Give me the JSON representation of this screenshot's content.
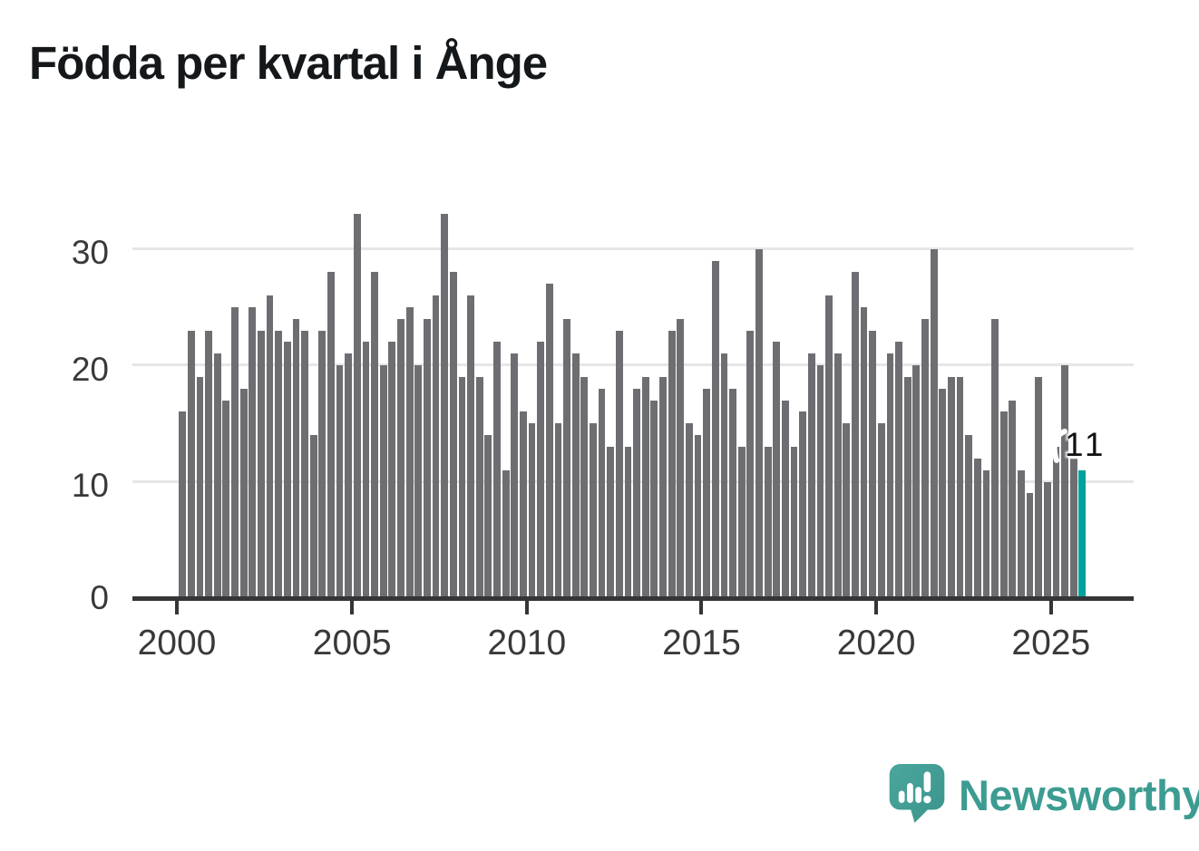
{
  "title": "Födda per kvartal i Ånge",
  "chart_data": {
    "type": "bar",
    "title": "Födda per kvartal i Ånge",
    "x_start": "2000 Q1",
    "x_end": "2025 Q4",
    "frequency": "quarterly",
    "values": [
      16,
      23,
      19,
      23,
      21,
      17,
      25,
      18,
      25,
      23,
      26,
      23,
      22,
      24,
      23,
      14,
      23,
      28,
      20,
      21,
      33,
      22,
      28,
      20,
      22,
      24,
      25,
      20,
      24,
      26,
      33,
      28,
      19,
      26,
      19,
      14,
      22,
      11,
      21,
      16,
      15,
      22,
      27,
      15,
      24,
      21,
      19,
      15,
      18,
      13,
      23,
      13,
      18,
      19,
      17,
      19,
      23,
      24,
      15,
      14,
      18,
      29,
      21,
      18,
      13,
      23,
      30,
      13,
      22,
      17,
      13,
      16,
      21,
      20,
      26,
      21,
      15,
      28,
      25,
      23,
      15,
      21,
      22,
      19,
      20,
      24,
      30,
      18,
      19,
      19,
      14,
      12,
      11,
      24,
      16,
      17,
      11,
      9,
      19,
      10,
      13,
      20,
      12,
      11
    ],
    "highlight_last": {
      "value": 11,
      "label": "11",
      "color": "#00a29b"
    },
    "bar_color": "#6e6e72",
    "yticks": [
      0,
      10,
      20,
      30
    ],
    "xticks": [
      "2000",
      "2005",
      "2010",
      "2015",
      "2020",
      "2025"
    ],
    "ylim": [
      0,
      33
    ],
    "grid": "horizontal-gridlines-at-10-20-30",
    "legend": "none"
  },
  "annotation": {
    "label": "11"
  },
  "branding": {
    "name": "Newsworthy",
    "color": "#3d9c92"
  },
  "colors": {
    "bar_gray": "#6e6e72",
    "highlight_teal": "#00a29b",
    "grid": "#e6e6e6",
    "axis": "#333537"
  }
}
